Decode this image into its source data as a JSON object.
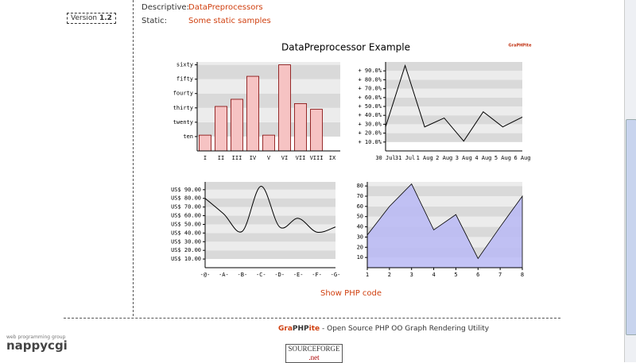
{
  "sidebar": {
    "version_label": "Version",
    "version": "1.2"
  },
  "info": {
    "rows": [
      [
        "Descriptive:",
        "DataPreprocessors"
      ],
      [
        "Static:",
        "Some static samples"
      ]
    ]
  },
  "title": "DataPreprocessor Example",
  "logo": "GraPHPite",
  "chart_data": [
    {
      "type": "bar",
      "categories": [
        "I",
        "II",
        "III",
        "IV",
        "V",
        "VI",
        "VII",
        "VIII",
        "IX"
      ],
      "values": [
        11,
        31,
        36,
        52,
        11,
        60,
        33,
        29,
        null
      ],
      "color": "#f6c3c3",
      "ylim": [
        0,
        62
      ],
      "yticks": [
        {
          "value": 10,
          "label": "ten"
        },
        {
          "value": 20,
          "label": "twenty"
        },
        {
          "value": 30,
          "label": "thirty"
        },
        {
          "value": 40,
          "label": "fourty"
        },
        {
          "value": 50,
          "label": "fifty"
        },
        {
          "value": 60,
          "label": "sixty"
        }
      ],
      "bands": true
    },
    {
      "type": "line",
      "categories": [
        "30 Jul",
        "31 Jul",
        "1 Aug",
        "2 Aug",
        "3 Aug",
        "4 Aug",
        "5 Aug",
        "6 Aug"
      ],
      "values": [
        27,
        96,
        27,
        37,
        11,
        44,
        27,
        38
      ],
      "color": "#000000",
      "ylim": [
        0,
        100
      ],
      "yticks": [
        {
          "value": 10,
          "label": "+ 10.0%"
        },
        {
          "value": 20,
          "label": "+ 20.0%"
        },
        {
          "value": 30,
          "label": "+ 30.0%"
        },
        {
          "value": 40,
          "label": "+ 40.0%"
        },
        {
          "value": 50,
          "label": "+ 50.0%"
        },
        {
          "value": 60,
          "label": "+ 60.0%"
        },
        {
          "value": 70,
          "label": "+ 70.0%"
        },
        {
          "value": 80,
          "label": "+ 80.0%"
        },
        {
          "value": 90,
          "label": "+ 90.0%"
        }
      ],
      "bands": true
    },
    {
      "type": "line",
      "smooth": true,
      "categories": [
        "-@-",
        "-A-",
        "-B-",
        "-C-",
        "-D-",
        "-E-",
        "-F-",
        "-G-"
      ],
      "values": [
        80,
        62,
        42,
        94,
        47,
        57,
        41,
        47
      ],
      "color": "#000000",
      "ylim": [
        0,
        99
      ],
      "yticks": [
        {
          "value": 10,
          "label": "US$ 10.00"
        },
        {
          "value": 20,
          "label": "US$ 20.00"
        },
        {
          "value": 30,
          "label": "US$ 30.00"
        },
        {
          "value": 40,
          "label": "US$ 40.00"
        },
        {
          "value": 50,
          "label": "US$ 50.00"
        },
        {
          "value": 60,
          "label": "US$ 60.00"
        },
        {
          "value": 70,
          "label": "US$ 70.00"
        },
        {
          "value": 80,
          "label": "US$ 80.00"
        },
        {
          "value": 90,
          "label": "US$ 90.00"
        }
      ],
      "bands": true
    },
    {
      "type": "area",
      "x": [
        1,
        2,
        3,
        4,
        5,
        6,
        7,
        8
      ],
      "values": [
        32,
        60,
        82,
        37,
        52,
        9,
        40,
        70
      ],
      "color": "#b8b8f4",
      "xlim": [
        1,
        8
      ],
      "xticks": [
        1,
        2,
        3,
        4,
        5,
        6,
        7,
        8
      ],
      "ylim": [
        0,
        84
      ],
      "yticks": [
        10,
        20,
        30,
        40,
        50,
        60,
        70,
        80
      ],
      "bands": true
    }
  ],
  "show_code": "Show PHP code",
  "footer": {
    "brand": [
      "Gra",
      "PHP",
      "ite"
    ],
    "text": "- Open Source PHP OO Graph Rendering Utility"
  },
  "badges": {
    "nappy_top": "web programming group",
    "nappy": "nappycgi",
    "sourceforge": "SOURCEFORGE",
    "sourceforge_net": ".net"
  }
}
